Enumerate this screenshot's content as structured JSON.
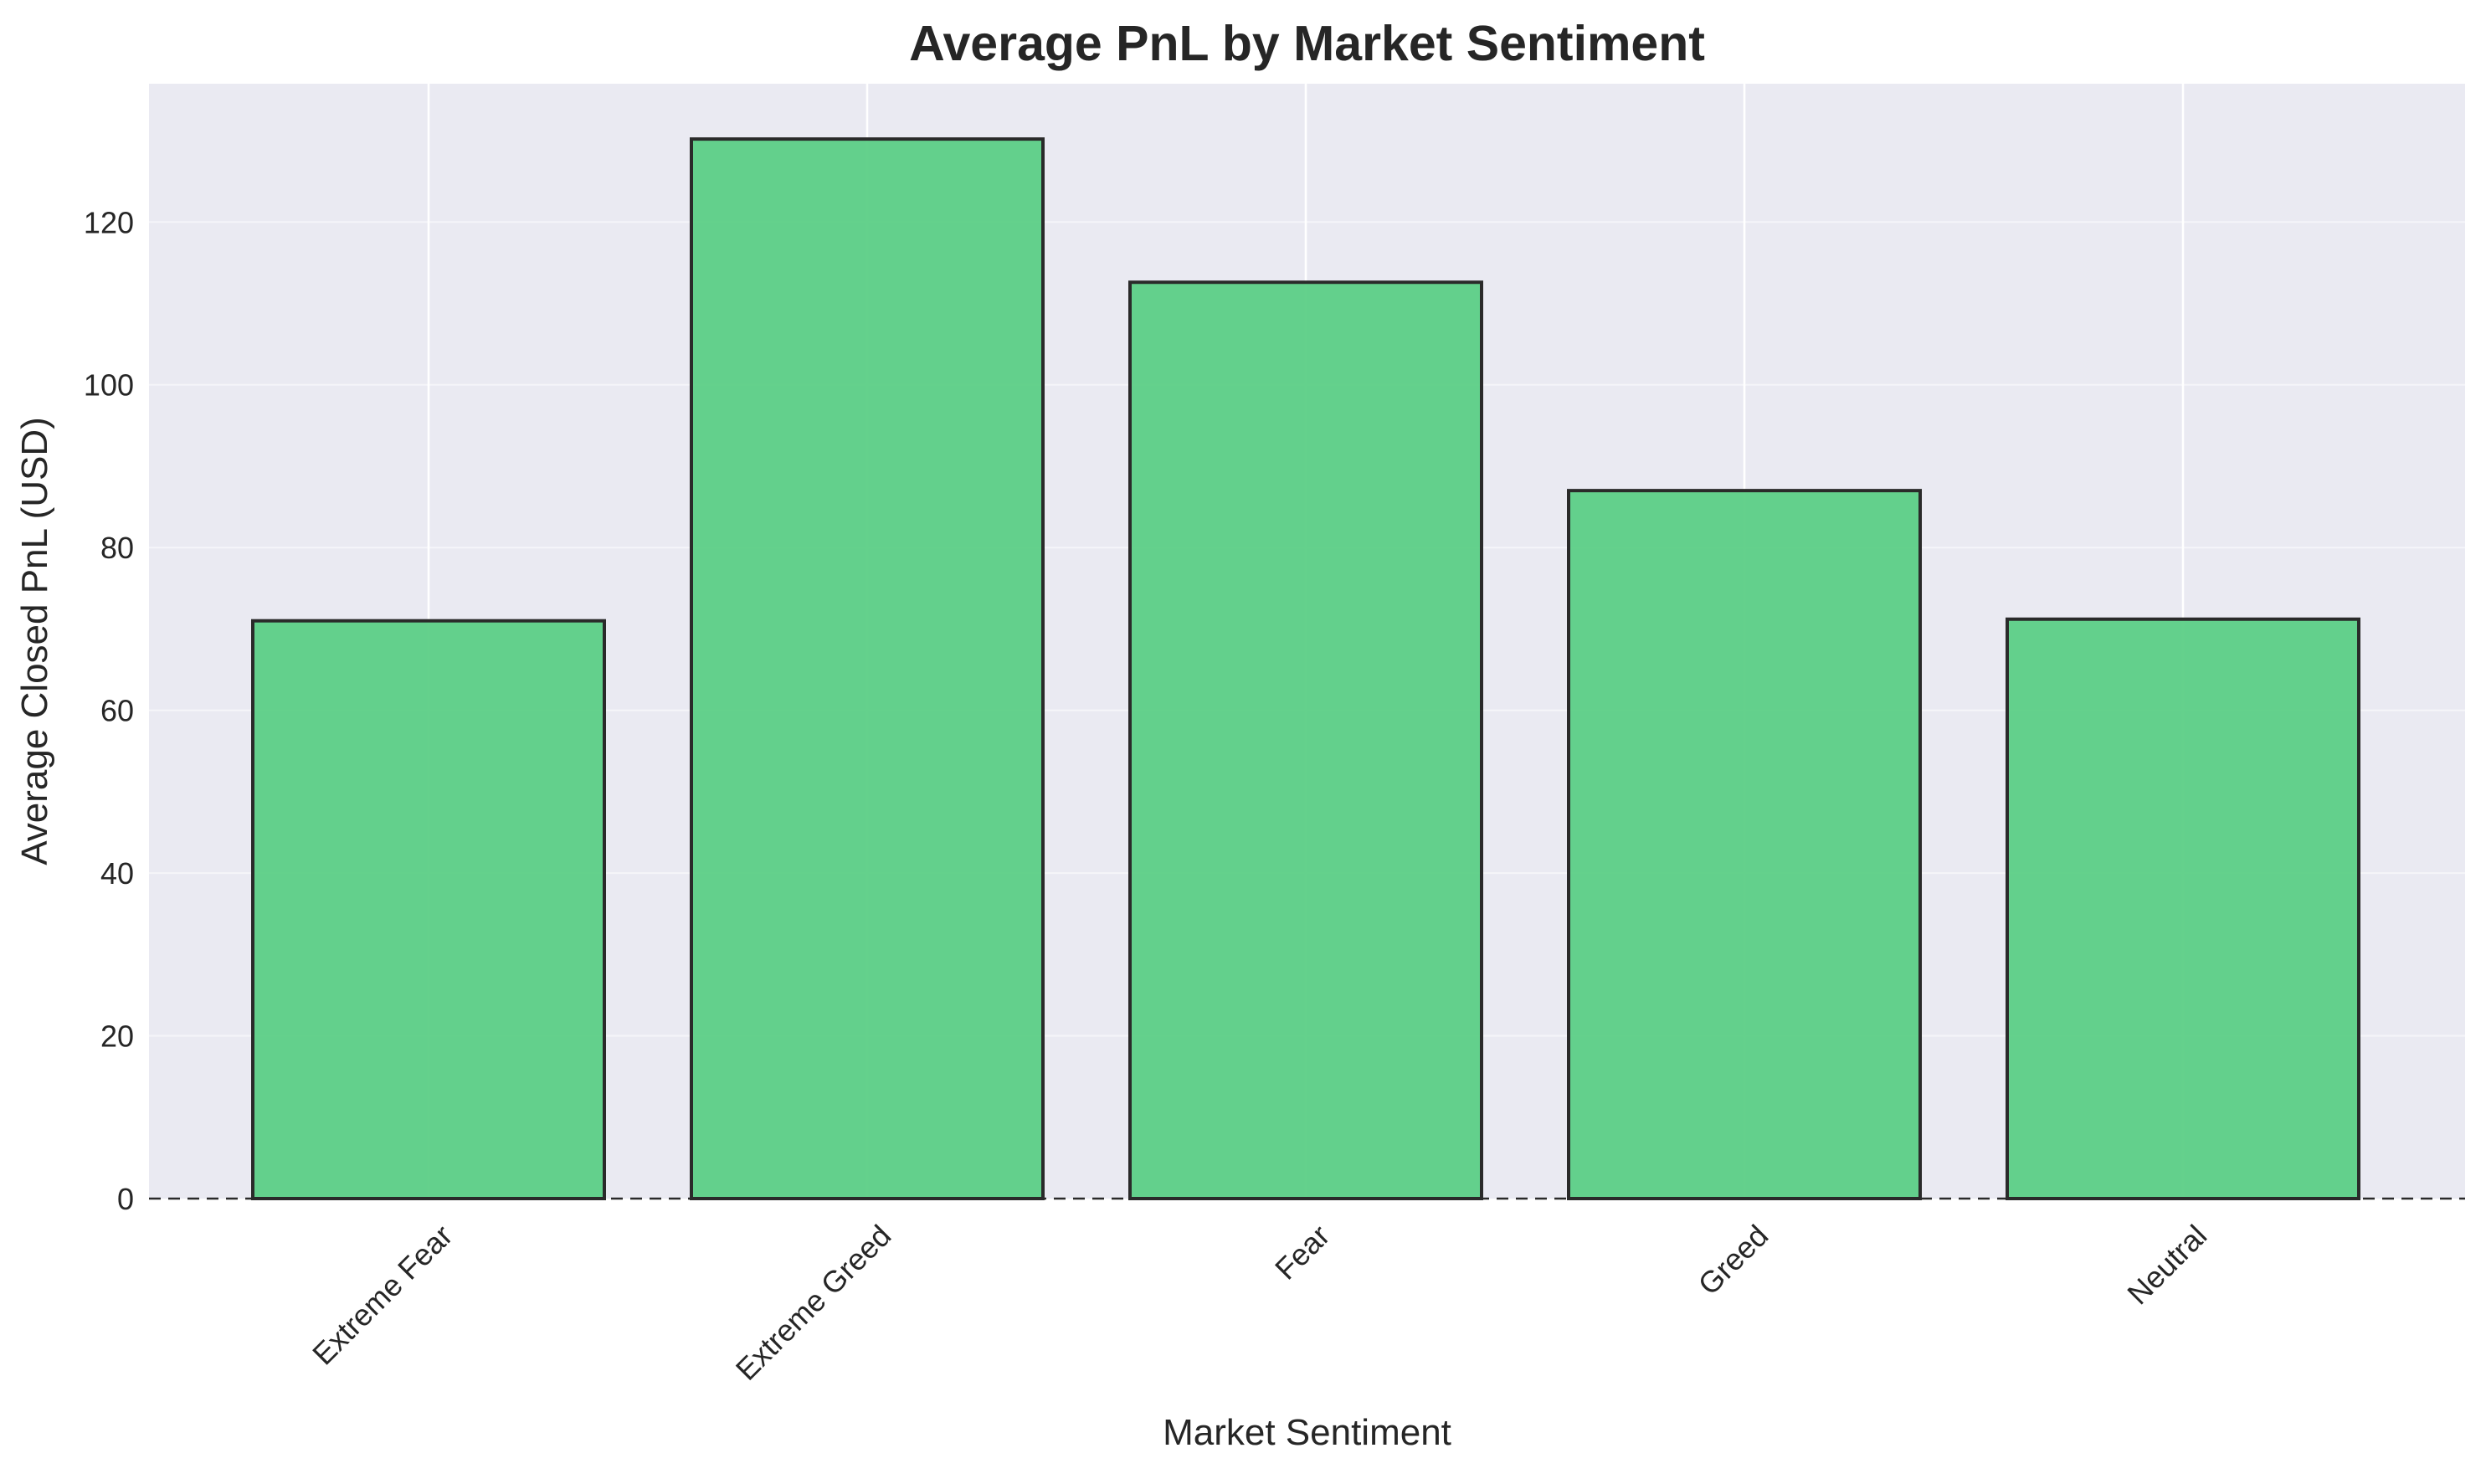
{
  "chart_data": {
    "type": "bar",
    "title": "Average PnL by Market Sentiment",
    "xlabel": "Market Sentiment",
    "ylabel": "Average Closed PnL (USD)",
    "categories": [
      "Extreme Fear",
      "Extreme Greed",
      "Fear",
      "Greed",
      "Neutral"
    ],
    "values": [
      71.0,
      130.2,
      112.6,
      87.0,
      71.2
    ],
    "ylim": [
      0,
      137
    ],
    "yticks": [
      0,
      20,
      40,
      60,
      80,
      100,
      120
    ],
    "ytick_labels": [
      "0",
      "20",
      "40",
      "60",
      "80",
      "100",
      "120"
    ],
    "xtick_rotation": -45,
    "grid": true,
    "zero_line": "dashed",
    "colors": {
      "plot_background": "#eaeaf2",
      "bar_fill": "#5ccf86",
      "bar_edge": "#2a2a2a",
      "grid": "#ffffff",
      "text": "#262626"
    }
  }
}
